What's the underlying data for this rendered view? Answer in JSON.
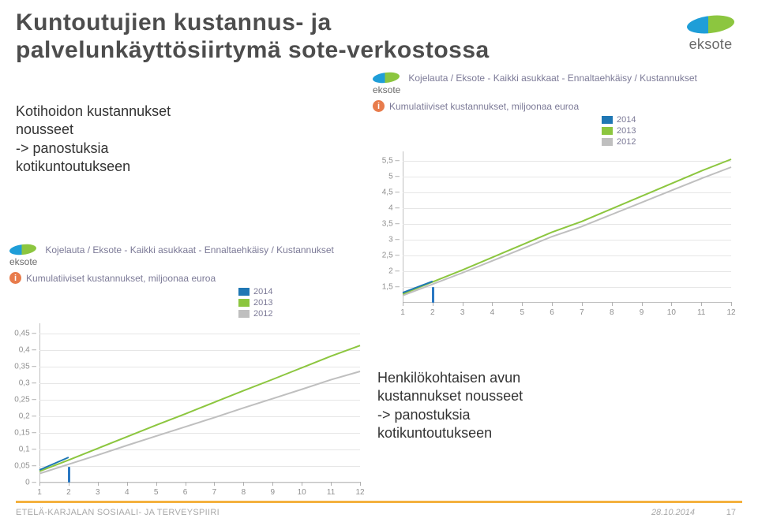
{
  "title_line1": "Kuntoutujien kustannus- ja",
  "title_line2": "palvelunkäyttösiirtymä sote-verkostossa",
  "logo_text": "eksote",
  "body_text_1_l1": "Kotihoidon kustannukset",
  "body_text_1_l2": "nousseet",
  "body_text_1_l3": "-> panostuksia",
  "body_text_1_l4": "kotikuntoutukseen",
  "body_text_2_l1": "Henkilökohtaisen avun",
  "body_text_2_l2": "kustannukset nousseet",
  "body_text_2_l3": "-> panostuksia",
  "body_text_2_l4": "kotikuntoutukseen",
  "chart_crumb": "Kojelauta / Eksote - Kaikki asukkaat - Ennaltaehkäisy / Kustannukset",
  "chart_subtitle": "Kumulatiiviset kustannukset, miljoonaa euroa",
  "info_glyph": "i",
  "legend": [
    {
      "label": "2014",
      "color": "#1f77b4"
    },
    {
      "label": "2013",
      "color": "#8cc63f"
    },
    {
      "label": "2012",
      "color": "#bfbfbf"
    }
  ],
  "chart_top": {
    "y_ticks": [
      "1,5",
      "2",
      "2,5",
      "3",
      "3,5",
      "4",
      "4,5",
      "5",
      "5,5"
    ],
    "ymin": 1.0,
    "ymax": 5.8,
    "x_ticks": [
      "1",
      "2",
      "3",
      "4",
      "5",
      "6",
      "7",
      "8",
      "9",
      "10",
      "11",
      "12"
    ],
    "series": {
      "2012": [
        1.23,
        1.59,
        1.95,
        2.33,
        2.71,
        3.1,
        3.42,
        3.8,
        4.18,
        4.56,
        4.94,
        5.3
      ],
      "2013": [
        1.28,
        1.66,
        2.04,
        2.44,
        2.84,
        3.24,
        3.58,
        3.98,
        4.38,
        4.78,
        5.18,
        5.55
      ],
      "2014": [
        1.32,
        1.68
      ],
      "colors": {
        "2012": "#bfbfbf",
        "2013": "#8cc63f",
        "2014": "#1f77b4"
      }
    },
    "cursor_x": 2,
    "cursor_color": "#2a78c2"
  },
  "chart_bottom": {
    "y_ticks": [
      "0",
      "0,05",
      "0,1",
      "0,15",
      "0,2",
      "0,25",
      "0,3",
      "0,35",
      "0,4",
      "0,45"
    ],
    "ymin": 0,
    "ymax": 0.48,
    "x_ticks": [
      "1",
      "2",
      "3",
      "4",
      "5",
      "6",
      "7",
      "8",
      "9",
      "10",
      "11",
      "12"
    ],
    "series": {
      "2012": [
        0.027,
        0.055,
        0.083,
        0.112,
        0.14,
        0.168,
        0.196,
        0.225,
        0.253,
        0.281,
        0.31,
        0.335
      ],
      "2013": [
        0.034,
        0.068,
        0.103,
        0.138,
        0.173,
        0.207,
        0.242,
        0.277,
        0.311,
        0.346,
        0.381,
        0.413
      ],
      "2014": [
        0.038,
        0.076
      ],
      "colors": {
        "2012": "#bfbfbf",
        "2013": "#8cc63f",
        "2014": "#1f77b4"
      }
    },
    "cursor_x": 2,
    "cursor_color": "#2a78c2"
  },
  "footer_left": "ETELÄ-KARJALAN SOSIAALI- JA TERVEYSPIIRI",
  "footer_date": "28.10.2014",
  "footer_page": "17",
  "colors": {
    "title": "#4d4d4d",
    "accent_bar": "#f4b13f",
    "grid": "#e6e6e6"
  }
}
